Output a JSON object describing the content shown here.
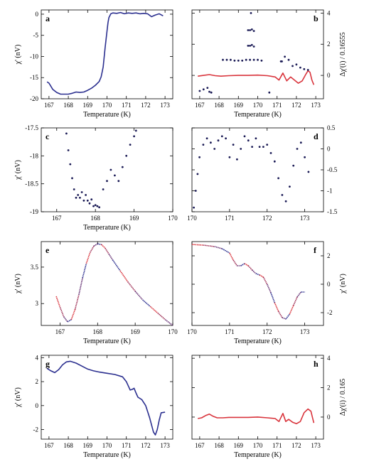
{
  "figure": {
    "colors": {
      "blue": "#2b2f8f",
      "red": "#d9343c",
      "dot": "#1a1a55"
    }
  },
  "chart_data": [
    {
      "panel": "a",
      "type": "line",
      "xlabel": "Temperature (K)",
      "ylabel": "χ' (nV)",
      "ylabel_side": "left",
      "xlim": [
        166.6,
        173.4
      ],
      "ylim": [
        -20,
        1
      ],
      "xticks": [
        167,
        168,
        169,
        170,
        171,
        172,
        173
      ],
      "yticks": [
        0,
        -5,
        -10,
        -15,
        -20
      ],
      "series": [
        {
          "color": "blue",
          "style": "line",
          "x": [
            166.9,
            167.0,
            167.2,
            167.4,
            167.6,
            167.8,
            168.0,
            168.2,
            168.4,
            168.6,
            168.8,
            169.0,
            169.2,
            169.4,
            169.6,
            169.7,
            169.8,
            169.9,
            170.0,
            170.05,
            170.1,
            170.2,
            170.3,
            170.5,
            170.7,
            170.9,
            171.1,
            171.3,
            171.5,
            171.7,
            171.9,
            172.1,
            172.3,
            172.5,
            172.7,
            172.9
          ],
          "y": [
            -16.0,
            -16.3,
            -17.8,
            -18.5,
            -18.9,
            -18.9,
            -18.9,
            -18.7,
            -18.4,
            -18.5,
            -18.4,
            -18.0,
            -17.5,
            -16.8,
            -15.9,
            -14.8,
            -12.5,
            -8.0,
            -4.0,
            -2.0,
            -0.8,
            0.1,
            0.3,
            0.2,
            0.4,
            0.1,
            0.3,
            0.2,
            0.3,
            0.1,
            0.2,
            0.1,
            -0.6,
            -0.2,
            0.1,
            -0.4
          ]
        }
      ]
    },
    {
      "panel": "b",
      "type": "scatter",
      "xlabel": "Temperature (K)",
      "ylabel": "Δχ'(i) / 0.16555",
      "ylabel_side": "right",
      "xlim": [
        166.6,
        173.4
      ],
      "ylim": [
        -1.5,
        4.2
      ],
      "xticks": [
        167,
        168,
        169,
        170,
        171,
        172,
        173
      ],
      "yticks": [
        0,
        2,
        4
      ],
      "series": [
        {
          "color": "red",
          "style": "line",
          "x": [
            166.9,
            167.2,
            167.5,
            167.8,
            168.1,
            168.5,
            169.0,
            169.5,
            170.0,
            170.5,
            170.9,
            171.1,
            171.3,
            171.5,
            171.7,
            171.9,
            172.1,
            172.3,
            172.5,
            172.6,
            172.7,
            172.8,
            172.9
          ],
          "y": [
            -0.05,
            0.0,
            0.05,
            -0.02,
            -0.05,
            -0.02,
            0.0,
            0.0,
            0.02,
            -0.02,
            -0.1,
            -0.3,
            0.15,
            -0.35,
            -0.1,
            -0.3,
            -0.5,
            -0.35,
            0.1,
            0.3,
            0.2,
            -0.3,
            -0.6
          ]
        },
        {
          "color": "dot",
          "style": "dots",
          "x": [
            167.0,
            167.2,
            167.4,
            167.5,
            167.6,
            168.2,
            168.4,
            168.6,
            168.8,
            169.0,
            169.2,
            169.4,
            169.6,
            169.8,
            170.0,
            170.2,
            171.2,
            171.4,
            171.6,
            171.8,
            172.0,
            172.2,
            172.4,
            172.6,
            169.5,
            169.6,
            169.7,
            169.8,
            169.5,
            169.6,
            169.7,
            169.8,
            169.65,
            170.6,
            171.25
          ],
          "y": [
            -1.0,
            -0.9,
            -0.8,
            -1.05,
            -1.1,
            1.0,
            1.0,
            1.0,
            0.95,
            0.95,
            0.95,
            1.0,
            1.0,
            1.0,
            1.0,
            0.95,
            0.9,
            1.2,
            1.0,
            0.6,
            0.7,
            0.5,
            0.4,
            0.35,
            1.9,
            1.9,
            1.95,
            1.85,
            2.9,
            2.9,
            2.95,
            2.85,
            4.0,
            -1.1,
            0.9
          ]
        }
      ]
    },
    {
      "panel": "c",
      "type": "scatter",
      "xlabel": "Temperature (K)",
      "ylabel": "χ' (nV)",
      "ylabel_side": "left",
      "xlim": [
        166.6,
        170.0
      ],
      "ylim": [
        -19.0,
        -17.5
      ],
      "xticks": [
        167,
        168,
        169,
        170
      ],
      "yticks": [
        -17.5,
        -18.0,
        -18.5,
        -19.0
      ],
      "series": [
        {
          "color": "dot",
          "style": "dots",
          "x": [
            167.25,
            167.3,
            167.35,
            167.4,
            167.45,
            167.5,
            167.55,
            167.6,
            167.65,
            167.7,
            167.75,
            167.8,
            167.85,
            167.9,
            167.95,
            168.0,
            168.05,
            168.1,
            168.2,
            168.3,
            168.4,
            168.5,
            168.6,
            168.7,
            168.8,
            168.9,
            169.0,
            169.05
          ],
          "y": [
            -17.6,
            -17.9,
            -18.15,
            -18.4,
            -18.6,
            -18.75,
            -18.7,
            -18.75,
            -18.65,
            -18.8,
            -18.7,
            -18.8,
            -18.85,
            -18.78,
            -18.9,
            -18.88,
            -18.9,
            -18.92,
            -18.6,
            -18.45,
            -18.25,
            -18.35,
            -18.45,
            -18.2,
            -18.0,
            -17.8,
            -17.65,
            -17.55
          ]
        }
      ]
    },
    {
      "panel": "d",
      "type": "scatter",
      "xlabel": "",
      "ylabel": "",
      "ylabel_side": "right",
      "xlim": [
        170.0,
        173.5
      ],
      "ylim": [
        -1.5,
        0.5
      ],
      "xticks": [
        170,
        171,
        172,
        173
      ],
      "yticks": [
        0.5,
        0.0,
        -0.5,
        -1.0,
        -1.5
      ],
      "series": [
        {
          "color": "dot",
          "style": "dots",
          "x": [
            170.05,
            170.1,
            170.15,
            170.2,
            170.3,
            170.4,
            170.5,
            170.6,
            170.7,
            170.8,
            170.9,
            171.0,
            171.1,
            171.2,
            171.3,
            171.4,
            171.5,
            171.6,
            171.7,
            171.8,
            171.9,
            172.0,
            172.1,
            172.2,
            172.3,
            172.4,
            172.5,
            172.6,
            172.7,
            172.8,
            172.9,
            173.0,
            173.1
          ],
          "y": [
            -1.4,
            -1.0,
            -0.6,
            -0.2,
            0.1,
            0.25,
            0.15,
            0.0,
            0.2,
            0.3,
            0.25,
            -0.2,
            0.1,
            -0.25,
            0.0,
            0.3,
            0.2,
            0.05,
            0.25,
            0.05,
            0.05,
            0.1,
            -0.1,
            -0.3,
            -0.7,
            -1.1,
            -1.25,
            -0.9,
            -0.4,
            0.0,
            0.15,
            -0.2,
            -0.55
          ]
        }
      ]
    },
    {
      "panel": "e",
      "type": "line",
      "xlabel": "Temperature (K)",
      "ylabel": "χ' (nV)",
      "ylabel_side": "left",
      "xlim": [
        166.5,
        170.0
      ],
      "ylim": [
        2.7,
        3.85
      ],
      "xticks": [
        167,
        168,
        169,
        170
      ],
      "yticks": [
        3.5,
        3.0
      ],
      "series": [
        {
          "color": "gradient",
          "style": "line",
          "x": [
            166.9,
            167.0,
            167.1,
            167.2,
            167.3,
            167.4,
            167.5,
            167.6,
            167.7,
            167.8,
            167.9,
            168.0,
            168.1,
            168.2,
            168.3,
            168.4,
            168.6,
            168.8,
            169.0,
            169.2,
            169.4,
            169.6,
            169.8,
            170.0
          ],
          "y": [
            3.1,
            2.95,
            2.82,
            2.75,
            2.78,
            2.92,
            3.12,
            3.35,
            3.55,
            3.7,
            3.79,
            3.82,
            3.81,
            3.76,
            3.68,
            3.6,
            3.45,
            3.3,
            3.17,
            3.05,
            2.96,
            2.87,
            2.78,
            2.7
          ]
        }
      ]
    },
    {
      "panel": "f",
      "type": "line",
      "xlabel": "Temperature (K)",
      "ylabel": "χ' (nV)",
      "ylabel_side": "right",
      "xlim": [
        170.0,
        173.5
      ],
      "ylim": [
        -2.9,
        3.0
      ],
      "xticks": [
        170,
        171,
        172,
        173
      ],
      "yticks": [
        2,
        0,
        -2
      ],
      "series": [
        {
          "color": "gradient",
          "style": "line",
          "x": [
            170.0,
            170.3,
            170.6,
            170.8,
            171.0,
            171.1,
            171.2,
            171.3,
            171.4,
            171.5,
            171.6,
            171.7,
            171.8,
            171.9,
            172.0,
            172.1,
            172.2,
            172.3,
            172.4,
            172.5,
            172.6,
            172.7,
            172.8,
            172.9,
            173.0
          ],
          "y": [
            2.8,
            2.75,
            2.65,
            2.5,
            2.2,
            1.7,
            1.3,
            1.3,
            1.45,
            1.3,
            1.0,
            0.75,
            0.65,
            0.5,
            0.0,
            -0.6,
            -1.3,
            -1.9,
            -2.35,
            -2.45,
            -2.1,
            -1.5,
            -0.9,
            -0.55,
            -0.55
          ]
        }
      ]
    },
    {
      "panel": "g",
      "type": "line",
      "xlabel": "Temperature (K)",
      "ylabel": "χ' (nV)",
      "ylabel_side": "left",
      "xlim": [
        166.6,
        173.4
      ],
      "ylim": [
        -2.8,
        4.2
      ],
      "xticks": [
        167,
        168,
        169,
        170,
        171,
        172,
        173
      ],
      "yticks": [
        4,
        2,
        0,
        -2
      ],
      "series": [
        {
          "color": "blue",
          "style": "line",
          "x": [
            166.9,
            167.1,
            167.3,
            167.5,
            167.7,
            167.9,
            168.1,
            168.4,
            168.7,
            169.0,
            169.3,
            169.6,
            170.0,
            170.4,
            170.8,
            171.0,
            171.2,
            171.3,
            171.4,
            171.5,
            171.6,
            171.8,
            172.0,
            172.2,
            172.4,
            172.5,
            172.6,
            172.7,
            172.8,
            173.0
          ],
          "y": [
            3.1,
            2.9,
            2.75,
            3.0,
            3.4,
            3.65,
            3.7,
            3.55,
            3.3,
            3.05,
            2.9,
            2.8,
            2.7,
            2.6,
            2.4,
            2.0,
            1.3,
            1.35,
            1.45,
            1.05,
            0.7,
            0.5,
            0.0,
            -1.0,
            -2.2,
            -2.45,
            -2.0,
            -1.2,
            -0.6,
            -0.55
          ]
        }
      ]
    },
    {
      "panel": "h",
      "type": "line",
      "xlabel": "Temperature (K)",
      "ylabel": "Δχ'(i) / 0.165",
      "ylabel_side": "right",
      "xlim": [
        166.6,
        173.4
      ],
      "ylim": [
        -1.5,
        4.2
      ],
      "xticks": [
        167,
        168,
        169,
        170,
        171,
        172,
        173
      ],
      "yticks": [
        0,
        2,
        4
      ],
      "series": [
        {
          "color": "red",
          "style": "line",
          "x": [
            166.9,
            167.1,
            167.3,
            167.5,
            167.7,
            167.9,
            168.2,
            168.5,
            169.0,
            169.5,
            170.0,
            170.5,
            170.9,
            171.1,
            171.3,
            171.45,
            171.6,
            171.8,
            172.0,
            172.2,
            172.4,
            172.6,
            172.75,
            172.9
          ],
          "y": [
            -0.1,
            -0.05,
            0.1,
            0.2,
            0.05,
            -0.05,
            -0.05,
            -0.02,
            -0.02,
            -0.02,
            0.0,
            -0.05,
            -0.1,
            -0.3,
            0.25,
            -0.3,
            -0.15,
            -0.35,
            -0.45,
            -0.3,
            0.3,
            0.55,
            0.4,
            -0.4
          ]
        }
      ]
    }
  ]
}
